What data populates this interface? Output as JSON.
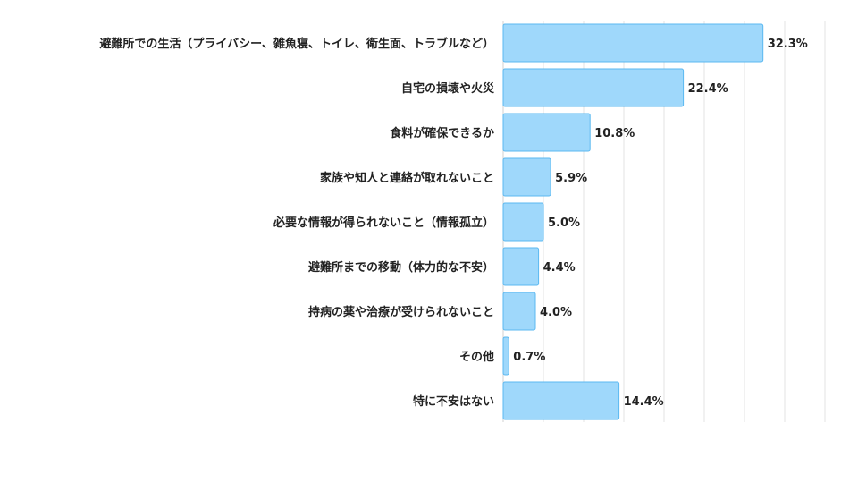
{
  "chart_data": {
    "type": "bar",
    "orientation": "horizontal",
    "categories": [
      "避難所での生活（プライバシー、雑魚寝、トイレ、衛生面、トラブルなど）",
      "自宅の損壊や火災",
      "食料が確保できるか",
      "家族や知人と連絡が取れないこと",
      "必要な情報が得られないこと（情報孤立）",
      "避難所までの移動（体力的な不安）",
      "持病の薬や治療が受けられないこと",
      "その他",
      "特に不安はない"
    ],
    "values": [
      32.3,
      22.4,
      10.8,
      5.9,
      5.0,
      4.4,
      4.0,
      0.7,
      14.4
    ],
    "value_labels": [
      "32.3%",
      "22.4%",
      "10.8%",
      "5.9%",
      "5.0%",
      "4.4%",
      "4.0%",
      "0.7%",
      "14.4%"
    ],
    "xlim": [
      0,
      40
    ],
    "grid": true,
    "bar_color": "#9fd8fb",
    "bar_edge_color": "#5bb8f0",
    "grid_color": "#e3e3e3"
  }
}
